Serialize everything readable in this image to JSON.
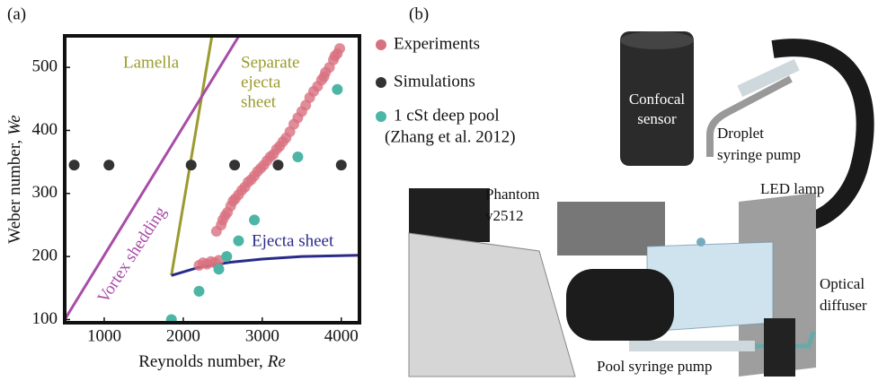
{
  "chart_data": {
    "type": "scatter",
    "panel_label": "(a)",
    "xlabel": "Reynolds number,",
    "xlabel_symbol": "Re",
    "ylabel": "Weber number,",
    "ylabel_symbol": "We",
    "xlim": [
      500,
      4230
    ],
    "ylim": [
      95,
      550
    ],
    "xticks": [
      1000,
      2000,
      3000,
      4000
    ],
    "yticks": [
      100,
      200,
      300,
      400,
      500
    ],
    "series": [
      {
        "name": "Experiments",
        "mode": "markers",
        "color": "#d9707f",
        "x": [
          2200,
          2250,
          2300,
          2350,
          2400,
          2450,
          2420,
          2480,
          2500,
          2530,
          2560,
          2600,
          2630,
          2660,
          2700,
          2740,
          2780,
          2820,
          2860,
          2900,
          2940,
          2980,
          3020,
          3060,
          3100,
          3140,
          3180,
          3220,
          3260,
          3300,
          3350,
          3400,
          3450,
          3500,
          3550,
          3600,
          3650,
          3700,
          3750,
          3800,
          3850,
          3900,
          3950,
          3980,
          3920,
          3780
        ],
        "values": [
          186,
          190,
          188,
          192,
          190,
          194,
          240,
          250,
          258,
          265,
          270,
          280,
          288,
          292,
          298,
          305,
          310,
          318,
          322,
          328,
          335,
          340,
          345,
          352,
          358,
          362,
          370,
          375,
          382,
          388,
          398,
          410,
          420,
          430,
          440,
          452,
          462,
          470,
          480,
          492,
          500,
          512,
          522,
          530,
          518,
          485
        ]
      },
      {
        "name": "Simulations",
        "mode": "markers",
        "color": "#333333",
        "x": [
          620,
          1060,
          2100,
          2650,
          3200,
          4000
        ],
        "values": [
          345,
          345,
          345,
          345,
          345,
          345
        ]
      },
      {
        "name": "1 cSt deep pool",
        "note": "(Zhang et al. 2012)",
        "mode": "markers",
        "color": "#4cb5a5",
        "x": [
          1850,
          2200,
          2450,
          2550,
          2700,
          2900,
          3450,
          3950
        ],
        "values": [
          100,
          145,
          180,
          200,
          225,
          258,
          358,
          465
        ]
      },
      {
        "name": "Lamella",
        "mode": "line",
        "color": "#9c9a2e",
        "x": [
          1850,
          2370
        ],
        "values": [
          170,
          555
        ]
      },
      {
        "name": "Vortex shedding",
        "mode": "line",
        "color": "#a84ca8",
        "x": [
          500,
          2730
        ],
        "values": [
          100,
          555
        ]
      },
      {
        "name": "Ejecta sheet",
        "mode": "line",
        "color": "#2a2a8a",
        "x": [
          1850,
          2200,
          2600,
          3000,
          3500,
          4230
        ],
        "values": [
          170,
          183,
          191,
          196,
          200,
          202
        ]
      }
    ],
    "annotations": [
      "Lamella",
      "Separate",
      "ejecta",
      "sheet",
      "Vortex shedding",
      "Ejecta sheet"
    ]
  },
  "figure_b": {
    "panel_label": "(b)",
    "labels": [
      {
        "lines": [
          "Confocal",
          "sensor"
        ]
      },
      {
        "lines": [
          "Droplet",
          "syringe pump"
        ]
      },
      {
        "lines": [
          "Phantom",
          "v2512"
        ]
      },
      {
        "lines": [
          "LED lamp"
        ]
      },
      {
        "lines": [
          "Optical",
          "diffuser"
        ]
      },
      {
        "lines": [
          "Pool syringe pump"
        ]
      }
    ]
  }
}
